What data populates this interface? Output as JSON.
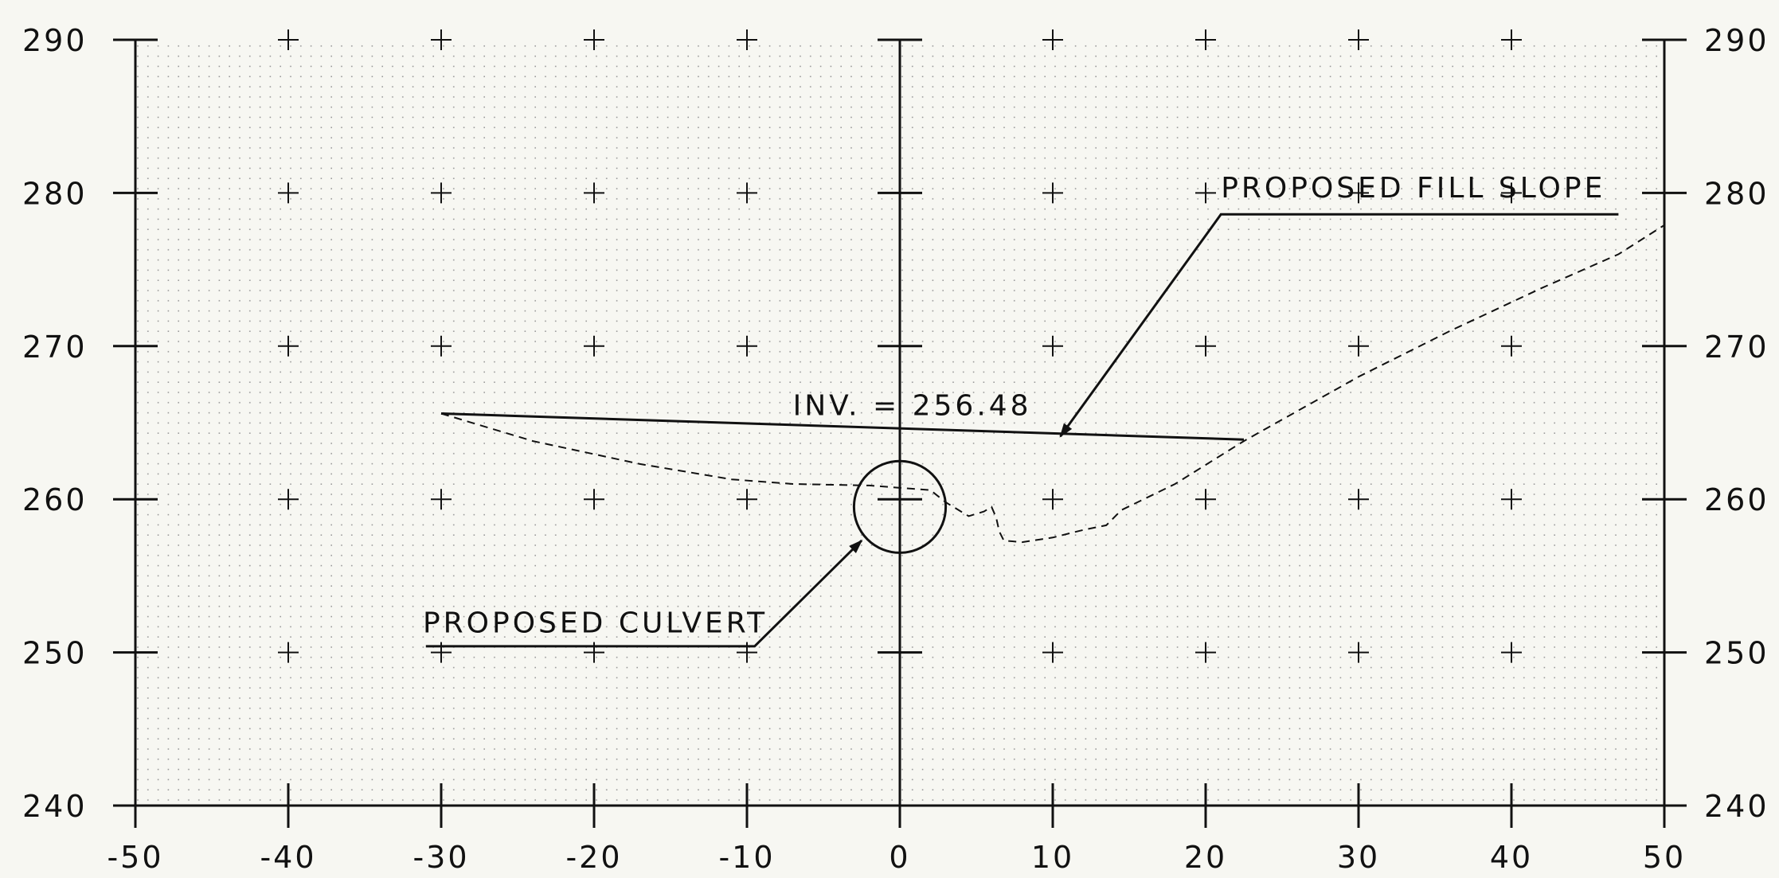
{
  "chart_data": {
    "type": "line",
    "title": "",
    "xlabel": "",
    "ylabel": "",
    "xlim": [
      -50,
      50
    ],
    "ylim": [
      240,
      290
    ],
    "x_ticks": [
      -50,
      -40,
      -30,
      -20,
      -10,
      0,
      10,
      20,
      30,
      40,
      50
    ],
    "x_tick_labels": [
      "-50",
      "-40",
      "-30",
      "-20",
      "-10",
      "0",
      "10",
      "20",
      "30",
      "40",
      "50"
    ],
    "y_ticks": [
      240,
      250,
      260,
      270,
      280,
      290
    ],
    "y_tick_labels": [
      "240",
      "250",
      "260",
      "270",
      "280",
      "290"
    ],
    "grid": "dotted",
    "series": [
      {
        "style": "dashed",
        "points": [
          [
            -30,
            265.6
          ],
          [
            -24,
            263.8
          ],
          [
            -17,
            262.3
          ],
          [
            -11,
            261.3
          ],
          [
            -7,
            261.0
          ],
          [
            -2,
            260.9
          ],
          [
            2,
            260.6
          ],
          [
            3,
            259.8
          ],
          [
            4.5,
            258.9
          ],
          [
            5.5,
            259.2
          ],
          [
            6,
            259.5
          ],
          [
            6.3,
            258.8
          ],
          [
            6.5,
            257.9
          ],
          [
            6.8,
            257.3
          ],
          [
            8,
            257.2
          ],
          [
            10,
            257.5
          ],
          [
            12,
            258.0
          ],
          [
            13.5,
            258.3
          ],
          [
            14.5,
            259.3
          ],
          [
            18,
            261.0
          ],
          [
            22.5,
            263.8
          ],
          [
            30,
            268.0
          ],
          [
            36,
            271.0
          ],
          [
            42,
            273.8
          ],
          [
            47,
            276.0
          ],
          [
            50,
            277.9
          ]
        ]
      },
      {
        "style": "solid",
        "points": [
          [
            -30,
            265.6
          ],
          [
            22.5,
            263.9
          ]
        ]
      }
    ],
    "annotations": {
      "culvert": {
        "label": "PROPOSED CULVERT",
        "center": [
          0,
          259.5
        ],
        "radius_ft": 3
      },
      "invert": {
        "label": "INV. = 256.48",
        "anchor": [
          -7,
          265.5
        ]
      },
      "fill_slope": {
        "label": "PROPOSED FILL SLOPE",
        "anchor": [
          21,
          279.7
        ],
        "target": [
          10.5,
          264.1
        ]
      }
    }
  },
  "colors": {
    "background": "#f7f7f2",
    "ink": "#111111",
    "grid_dots": "#9a9a9a"
  }
}
